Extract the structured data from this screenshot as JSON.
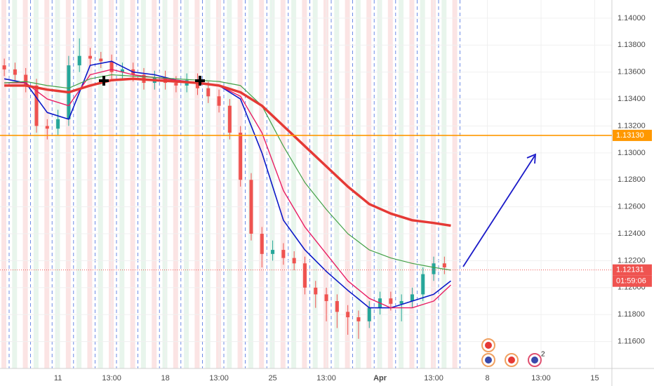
{
  "chart_data": {
    "type": "candlestick",
    "up_color": "#26a69a",
    "down_color": "#ef5350",
    "x": [
      2.5,
      3.0,
      3.5,
      4.0,
      4.5,
      5.0,
      5.5,
      6.0,
      6.5,
      7.0,
      7.5,
      8.0,
      8.5,
      9.0,
      9.5,
      10.0,
      10.5,
      11.0,
      11.5,
      12.0,
      12.5,
      13.0,
      13.5,
      14.0,
      14.5,
      15.0,
      15.5,
      16.0,
      16.5,
      17.0,
      17.5,
      18.0,
      18.5,
      19.0,
      19.5,
      20.0,
      20.5,
      21.0,
      21.5,
      22.0,
      22.5,
      23.0
    ],
    "open": [
      1.1365,
      1.1362,
      1.1358,
      1.135,
      1.132,
      1.1318,
      1.1325,
      1.1365,
      1.1372,
      1.137,
      1.1368,
      1.136,
      1.1362,
      1.1358,
      1.1352,
      1.1356,
      1.1352,
      1.135,
      1.1354,
      1.1348,
      1.1342,
      1.1335,
      1.1315,
      1.128,
      1.124,
      1.1225,
      1.1228,
      1.1222,
      1.1218,
      1.12,
      1.1195,
      1.119,
      1.1182,
      1.1178,
      1.1175,
      1.1185,
      1.1192,
      1.1188,
      1.119,
      1.1195,
      1.121,
      1.1218
    ],
    "high": [
      1.137,
      1.1367,
      1.1363,
      1.1355,
      1.1325,
      1.1332,
      1.1372,
      1.1385,
      1.1378,
      1.1375,
      1.1373,
      1.1367,
      1.1367,
      1.1363,
      1.1361,
      1.1361,
      1.1357,
      1.1359,
      1.1359,
      1.1353,
      1.1347,
      1.134,
      1.132,
      1.1285,
      1.1245,
      1.1235,
      1.1233,
      1.1227,
      1.1223,
      1.1205,
      1.12,
      1.1195,
      1.1187,
      1.1183,
      1.119,
      1.1197,
      1.1197,
      1.1195,
      1.12,
      1.1215,
      1.1223,
      1.1223
    ],
    "low": [
      1.1357,
      1.1353,
      1.1345,
      1.1315,
      1.131,
      1.1313,
      1.132,
      1.136,
      1.1365,
      1.1363,
      1.1355,
      1.1355,
      1.1353,
      1.1347,
      1.1347,
      1.1347,
      1.1345,
      1.1345,
      1.1343,
      1.1337,
      1.133,
      1.131,
      1.1275,
      1.1235,
      1.1215,
      1.122,
      1.1217,
      1.1213,
      1.1195,
      1.1185,
      1.1175,
      1.117,
      1.1165,
      1.1162,
      1.117,
      1.118,
      1.1183,
      1.1175,
      1.1185,
      1.119,
      1.1205,
      1.121
    ],
    "close": [
      1.1362,
      1.1358,
      1.135,
      1.132,
      1.1318,
      1.1325,
      1.1365,
      1.1372,
      1.137,
      1.1368,
      1.136,
      1.1362,
      1.1358,
      1.1352,
      1.1356,
      1.1352,
      1.135,
      1.1354,
      1.1348,
      1.1342,
      1.1335,
      1.1315,
      1.128,
      1.124,
      1.1225,
      1.1228,
      1.1222,
      1.1218,
      1.12,
      1.1195,
      1.119,
      1.1182,
      1.1178,
      1.1175,
      1.1185,
      1.1192,
      1.1188,
      1.119,
      1.1195,
      1.121,
      1.1218,
      1.1215
    ],
    "series": [
      {
        "color": "#0b18c8",
        "width": 1.6,
        "x": [
          2.5,
          3.5,
          4.5,
          5.5,
          6.5,
          7.5,
          8.5,
          9.5,
          10.5,
          11.5,
          12.5,
          13.5,
          14.5,
          15.5,
          16.5,
          17.5,
          18.5,
          19.5,
          20.5,
          21.5,
          22.5,
          23.3
        ],
        "values": [
          1.1355,
          1.1352,
          1.133,
          1.1325,
          1.1365,
          1.1368,
          1.136,
          1.1358,
          1.1354,
          1.1352,
          1.135,
          1.134,
          1.13,
          1.125,
          1.1228,
          1.1212,
          1.1198,
          1.1185,
          1.1185,
          1.119,
          1.1195,
          1.1205
        ]
      },
      {
        "color": "#e91e63",
        "width": 1.4,
        "x": [
          2.5,
          3.5,
          4.5,
          5.5,
          6.5,
          7.5,
          8.5,
          9.5,
          10.5,
          11.5,
          12.5,
          13.5,
          14.5,
          15.5,
          16.5,
          17.5,
          18.5,
          19.5,
          20.5,
          21.5,
          22.5,
          23.3
        ],
        "values": [
          1.1352,
          1.1352,
          1.134,
          1.1335,
          1.1358,
          1.1362,
          1.1358,
          1.1356,
          1.1354,
          1.1352,
          1.135,
          1.1342,
          1.1315,
          1.1272,
          1.1245,
          1.1225,
          1.1205,
          1.1192,
          1.1185,
          1.1185,
          1.119,
          1.1202
        ]
      },
      {
        "color": "#43a047",
        "width": 1.2,
        "x": [
          2.5,
          3.5,
          4.5,
          5.5,
          6.5,
          7.5,
          8.5,
          9.5,
          10.5,
          11.5,
          12.5,
          13.5,
          14.5,
          15.5,
          16.5,
          17.5,
          18.5,
          19.5,
          20.5,
          21.5,
          22.5,
          23.3
        ],
        "values": [
          1.1352,
          1.1353,
          1.135,
          1.1348,
          1.1355,
          1.1358,
          1.1357,
          1.1356,
          1.1355,
          1.1354,
          1.1353,
          1.135,
          1.1335,
          1.1305,
          1.1278,
          1.1258,
          1.124,
          1.1228,
          1.1222,
          1.1218,
          1.1215,
          1.1213
        ]
      },
      {
        "color": "#e53935",
        "width": 3.5,
        "x": [
          2.5,
          3.5,
          4.5,
          5.5,
          6.5,
          7.5,
          8.5,
          9.5,
          10.5,
          11.5,
          12.5,
          13.5,
          14.5,
          15.5,
          16.5,
          17.5,
          18.5,
          19.5,
          20.5,
          21.5,
          22.5,
          23.3
        ],
        "values": [
          1.135,
          1.135,
          1.1347,
          1.1345,
          1.135,
          1.1354,
          1.1355,
          1.1354,
          1.1353,
          1.1352,
          1.135,
          1.1345,
          1.1335,
          1.132,
          1.1305,
          1.129,
          1.1275,
          1.1262,
          1.1255,
          1.125,
          1.1248,
          1.1246
        ]
      }
    ],
    "price_lines": [
      {
        "value": 1.1313,
        "label": "1.13130",
        "color": "#ff9800"
      },
      {
        "value": 1.12131,
        "label": "1.12131",
        "color": "#ef5350",
        "countdown": "01:59:06"
      }
    ],
    "xlim": [
      2.3,
      30.8
    ],
    "xticks": [
      {
        "value": 5,
        "label": "11"
      },
      {
        "value": 7.5,
        "label": "13:00"
      },
      {
        "value": 10,
        "label": "18"
      },
      {
        "value": 12.5,
        "label": "13:00"
      },
      {
        "value": 15,
        "label": "25"
      },
      {
        "value": 17.5,
        "label": "13:00"
      },
      {
        "value": 20,
        "label": "Apr"
      },
      {
        "value": 22.5,
        "label": "13:00"
      },
      {
        "value": 25,
        "label": "8"
      },
      {
        "value": 27.5,
        "label": "13:00"
      },
      {
        "value": 30,
        "label": "15"
      }
    ],
    "ylim": [
      1.114,
      1.14135
    ],
    "yticks": [
      {
        "value": 1.14,
        "label": "1.14000"
      },
      {
        "value": 1.138,
        "label": "1.13800"
      },
      {
        "value": 1.136,
        "label": "1.13600"
      },
      {
        "value": 1.134,
        "label": "1.13400"
      },
      {
        "value": 1.132,
        "label": "1.13200"
      },
      {
        "value": 1.13,
        "label": "1.13000"
      },
      {
        "value": 1.128,
        "label": "1.12800"
      },
      {
        "value": 1.126,
        "label": "1.12600"
      },
      {
        "value": 1.124,
        "label": "1.12400"
      },
      {
        "value": 1.122,
        "label": "1.12200"
      },
      {
        "value": 1.12,
        "label": "1.12000"
      },
      {
        "value": 1.118,
        "label": "1.11800"
      },
      {
        "value": 1.116,
        "label": "1.11600"
      }
    ],
    "grid": true,
    "event_badge": "2"
  }
}
